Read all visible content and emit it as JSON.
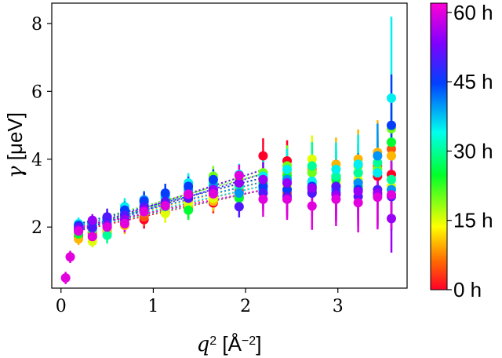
{
  "chart_data": {
    "type": "scatter",
    "xlabel_symbol": "q",
    "xlabel_power": "2",
    "xlabel_unit_open": " [Å",
    "xlabel_unit_power": "−2",
    "xlabel_unit_close": "]",
    "ylabel_symbol": "γ",
    "ylabel_unit": " [μeV]",
    "xlim": [
      -0.1,
      3.75
    ],
    "ylim": [
      0.2,
      8.6
    ],
    "x_ticks": [
      0,
      1,
      2,
      3
    ],
    "y_ticks": [
      2,
      4,
      6,
      8
    ],
    "grid": false,
    "colorbar": {
      "label_suffix": " h",
      "range": [
        0,
        62
      ],
      "ticks": [
        {
          "value": 0,
          "label": "0 h"
        },
        {
          "value": 15,
          "label": "15 h"
        },
        {
          "value": 30,
          "label": "30 h"
        },
        {
          "value": 45,
          "label": "45 h"
        },
        {
          "value": 60,
          "label": "60 h"
        }
      ],
      "colormap": "gist_rainbow"
    },
    "q2": [
      0.05,
      0.1,
      0.19,
      0.34,
      0.5,
      0.69,
      0.9,
      1.13,
      1.38,
      1.65,
      1.93,
      2.19,
      2.45,
      2.72,
      2.98,
      3.22,
      3.43,
      3.58
    ],
    "times": [
      0,
      5,
      10,
      15,
      20,
      25,
      30,
      35,
      40,
      45,
      50,
      55,
      60
    ],
    "gamma": [
      [
        null,
        null,
        1.72,
        1.84,
        2.0,
        2.1,
        2.22,
        2.42,
        2.57,
        2.71,
        2.88,
        4.1,
        3.95,
        3.7,
        3.45,
        3.35,
        3.5,
        3.55
      ],
      [
        null,
        null,
        1.85,
        1.78,
        1.9,
        2.2,
        2.3,
        2.68,
        2.8,
        2.9,
        3.08,
        3.2,
        3.0,
        3.05,
        3.2,
        3.6,
        3.8,
        4.3
      ],
      [
        null,
        null,
        1.65,
        1.7,
        1.82,
        2.05,
        2.44,
        2.55,
        2.6,
        2.76,
        3.25,
        3.35,
        3.6,
        3.7,
        3.85,
        4.0,
        4.2,
        4.1
      ],
      [
        null,
        null,
        1.95,
        1.58,
        1.95,
        2.25,
        2.5,
        2.4,
        2.7,
        2.85,
        2.93,
        3.0,
        3.2,
        4.0,
        3.3,
        3.4,
        3.0,
        3.2
      ],
      [
        null,
        null,
        2.0,
        1.9,
        2.1,
        2.3,
        2.6,
        2.7,
        2.9,
        3.5,
        3.4,
        3.6,
        3.8,
        3.6,
        3.5,
        3.8,
        3.7,
        4.9
      ],
      [
        null,
        null,
        1.8,
        2.05,
        2.0,
        2.28,
        2.45,
        2.85,
        2.5,
        3.05,
        2.85,
        3.3,
        3.5,
        3.3,
        3.4,
        3.2,
        3.6,
        4.5
      ],
      [
        null,
        null,
        1.9,
        1.95,
        1.76,
        2.2,
        2.55,
        2.6,
        3.0,
        3.3,
        3.2,
        3.45,
        3.3,
        3.8,
        3.5,
        3.6,
        3.9,
        3.4
      ],
      [
        null,
        null,
        2.1,
        2.1,
        2.2,
        2.6,
        2.7,
        2.9,
        3.3,
        3.0,
        3.55,
        3.5,
        3.7,
        3.35,
        3.7,
        3.85,
        3.6,
        5.8
      ],
      [
        null,
        null,
        1.95,
        2.0,
        2.15,
        2.4,
        2.8,
        2.95,
        3.1,
        3.2,
        3.0,
        3.1,
        3.4,
        3.1,
        3.1,
        3.3,
        4.1,
        3.1
      ],
      [
        null,
        null,
        2.05,
        2.15,
        2.25,
        2.5,
        2.76,
        3.0,
        3.2,
        3.4,
        3.3,
        3.2,
        3.1,
        3.2,
        3.0,
        3.1,
        2.95,
        5.0
      ],
      [
        null,
        null,
        2.0,
        1.98,
        2.3,
        2.35,
        2.6,
        2.75,
        2.85,
        3.1,
        2.6,
        3.0,
        2.9,
        3.0,
        3.2,
        2.9,
        3.1,
        2.9
      ],
      [
        null,
        null,
        1.92,
        2.2,
        2.05,
        2.22,
        2.5,
        2.65,
        2.95,
        3.1,
        3.3,
        3.4,
        3.3,
        3.15,
        2.95,
        3.05,
        3.0,
        2.25
      ],
      [
        0.5,
        1.12,
        1.88,
        1.72,
        2.0,
        2.1,
        2.45,
        2.62,
        2.97,
        2.98,
        3.52,
        2.82,
        2.82,
        2.62,
        2.82,
        2.72,
        2.88,
        2.95
      ]
    ]
  }
}
